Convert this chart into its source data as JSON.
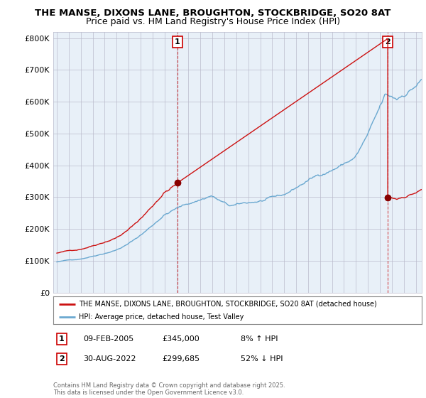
{
  "title1": "THE MANSE, DIXONS LANE, BROUGHTON, STOCKBRIDGE, SO20 8AT",
  "title2": "Price paid vs. HM Land Registry's House Price Index (HPI)",
  "yticks": [
    0,
    100000,
    200000,
    300000,
    400000,
    500000,
    600000,
    700000,
    800000
  ],
  "ylim": [
    0,
    820000
  ],
  "xlim_start": 1994.7,
  "xlim_end": 2025.5,
  "sale1_x": 2005.08,
  "sale1_y": 345000,
  "sale1_label": "1",
  "sale2_x": 2022.66,
  "sale2_y": 299685,
  "sale2_label": "2",
  "vline_color": "#cc0000",
  "line_red": "#cc1111",
  "line_blue": "#6aa8d0",
  "chart_bg": "#e8f0f8",
  "legend_label1": "THE MANSE, DIXONS LANE, BROUGHTON, STOCKBRIDGE, SO20 8AT (detached house)",
  "legend_label2": "HPI: Average price, detached house, Test Valley",
  "table_row1": [
    "1",
    "09-FEB-2005",
    "£345,000",
    "8% ↑ HPI"
  ],
  "table_row2": [
    "2",
    "30-AUG-2022",
    "£299,685",
    "52% ↓ HPI"
  ],
  "footnote": "Contains HM Land Registry data © Crown copyright and database right 2025.\nThis data is licensed under the Open Government Licence v3.0.",
  "bg_color": "#ffffff",
  "grid_color": "#bbbbcc",
  "title_fontsize": 9.5,
  "subtitle_fontsize": 9
}
